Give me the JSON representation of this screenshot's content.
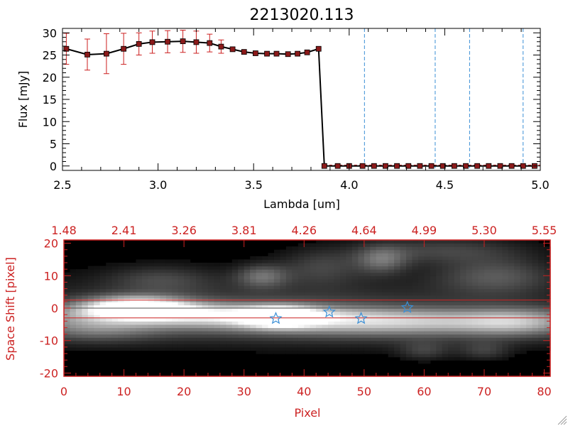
{
  "chart_data": [
    {
      "type": "line",
      "title": "2213020.113",
      "xlabel": "Lambda [um]",
      "ylabel": "Flux [mJy]",
      "xlim": [
        2.5,
        5.0
      ],
      "ylim": [
        -1,
        31
      ],
      "xticks": [
        "2.5",
        "3.0",
        "3.5",
        "4.0",
        "4.5",
        "5.0"
      ],
      "yticks": [
        "0",
        "5",
        "10",
        "15",
        "20",
        "25",
        "30"
      ],
      "grid": false,
      "colors": {
        "line": "#000000",
        "marker": "#8b1a1a",
        "errorbar": "#cc1f1f",
        "vline": "#3a8fd6"
      },
      "series": [
        {
          "x": [
            2.52,
            2.63,
            2.73,
            2.82,
            2.9,
            2.97,
            3.05,
            3.13,
            3.2,
            3.27,
            3.33,
            3.39,
            3.45,
            3.51,
            3.57,
            3.62,
            3.68,
            3.73,
            3.78,
            3.84,
            3.87,
            3.94,
            4.0,
            4.07,
            4.13,
            4.19,
            4.25,
            4.31,
            4.37,
            4.43,
            4.49,
            4.55,
            4.61,
            4.67,
            4.73,
            4.79,
            4.85,
            4.91,
            4.97
          ],
          "y": [
            26.4,
            25.1,
            25.3,
            26.4,
            27.5,
            27.9,
            28.0,
            28.1,
            27.9,
            27.7,
            26.9,
            26.3,
            25.7,
            25.4,
            25.3,
            25.3,
            25.2,
            25.3,
            25.6,
            26.4,
            0,
            0,
            0,
            0,
            0,
            0,
            0,
            0,
            0,
            0,
            0,
            0,
            0,
            0,
            0,
            0,
            0,
            0,
            0
          ],
          "yerr": [
            3.5,
            3.5,
            4.5,
            3.5,
            2.5,
            2.5,
            2.5,
            2.5,
            2.5,
            2.0,
            1.5,
            0,
            0,
            0,
            0,
            0,
            0,
            0,
            0,
            0,
            0,
            0,
            0,
            0,
            0,
            0,
            0,
            0,
            0,
            0,
            0,
            0,
            0,
            0,
            0,
            0,
            0,
            0,
            0
          ]
        }
      ],
      "vlines": [
        4.08,
        4.45,
        4.63,
        4.91
      ]
    },
    {
      "type": "heatmap",
      "xlabel": "Pixel",
      "ylabel": "Space Shift [pixel]",
      "xlim": [
        0,
        81
      ],
      "ylim": [
        -21,
        21
      ],
      "xticks": [
        "0",
        "10",
        "20",
        "30",
        "40",
        "50",
        "60",
        "70",
        "80"
      ],
      "yticks": [
        "-20",
        "-10",
        "0",
        "10",
        "20"
      ],
      "top_axis_ticks": [
        "1.48",
        "2.41",
        "3.26",
        "3.81",
        "4.26",
        "4.64",
        "4.99",
        "5.30",
        "5.55"
      ],
      "aperture_y": [
        -3,
        2.5
      ],
      "markers": [
        {
          "x": 35.3,
          "y": -3.2
        },
        {
          "x": 44.2,
          "y": -1.2
        },
        {
          "x": 49.5,
          "y": -3.2
        },
        {
          "x": 57.2,
          "y": 0.2
        }
      ],
      "colors": {
        "axis": "#cc2222",
        "marker": "#3a8fd6",
        "aperture": "#cc2222"
      }
    }
  ]
}
